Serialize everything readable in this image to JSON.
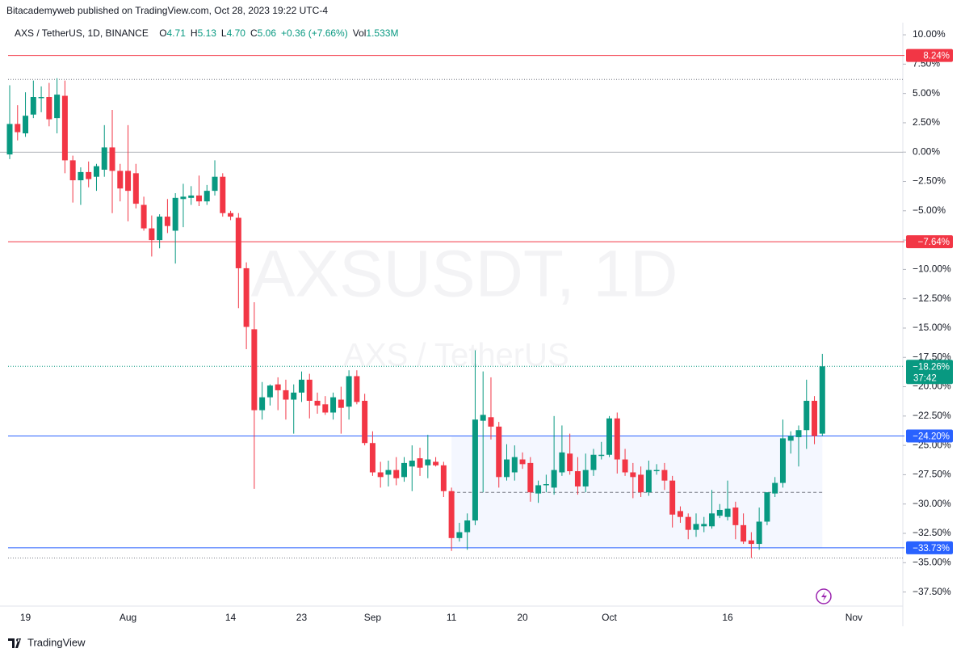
{
  "header": "Bitacademyweb published on TradingView.com, Oct 28, 2023 19:22 UTC-4",
  "footer": "TradingView",
  "chart_data": {
    "type": "candlestick",
    "title": "AXS / TetherUS, 1D, BINANCE",
    "legend_items": [
      {
        "label": "O",
        "value": "4.71"
      },
      {
        "label": "H",
        "value": "5.13"
      },
      {
        "label": "L",
        "value": "4.70"
      },
      {
        "label": "C",
        "value": "5.06"
      },
      {
        "label": "",
        "value": "+0.36 (+7.66%)"
      },
      {
        "label": "Vol",
        "value": "1.533M"
      }
    ],
    "watermark": "AXSUSDT, 1D",
    "watermark_subtitle": "AXS / TetherUS",
    "up_color": "#089981",
    "down_color": "#f23645",
    "categories": [
      null,
      null,
      "19",
      null,
      null,
      null,
      null,
      null,
      null,
      null,
      null,
      null,
      null,
      null,
      null,
      "Aug",
      null,
      null,
      null,
      null,
      null,
      null,
      null,
      null,
      null,
      null,
      null,
      null,
      "14",
      null,
      null,
      null,
      null,
      null,
      null,
      null,
      null,
      "23",
      null,
      null,
      null,
      null,
      null,
      null,
      null,
      null,
      "Sep",
      null,
      null,
      null,
      null,
      null,
      null,
      null,
      null,
      null,
      "11",
      null,
      null,
      null,
      null,
      null,
      null,
      null,
      null,
      "20",
      null,
      null,
      null,
      null,
      null,
      null,
      null,
      null,
      null,
      null,
      "Oct",
      null,
      null,
      null,
      null,
      null,
      null,
      null,
      null,
      null,
      null,
      null,
      null,
      null,
      null,
      "16",
      null,
      null,
      null,
      null,
      null,
      null,
      null,
      null,
      null,
      null,
      null,
      null,
      null,
      null,
      null,
      "Nov"
    ],
    "open": [
      -0.2,
      2.4,
      1.6,
      3.2,
      4.6,
      4.7,
      2.9,
      4.8,
      -0.7,
      -2.4,
      -1.7,
      -2.1,
      -1.5,
      0.4,
      -1.6,
      -1.6,
      -1.8,
      -4.5,
      -6.5,
      -7.5,
      -5.5,
      -6.7,
      -4.0,
      -3.9,
      -3.7,
      -4.2,
      -3.3,
      -2.1,
      -5.2,
      -5.6,
      -9.9,
      -15.1,
      -22.0,
      -20.9,
      -19.8,
      -20.3,
      -21.1,
      -20.5,
      -19.4,
      -21.2,
      -21.5,
      -22.2,
      -21.1,
      -21.7,
      -19.1,
      -21.2,
      -24.8,
      -27.3,
      -27.5,
      -27.1,
      -27.7,
      -26.8,
      -26.1,
      -26.7,
      -26.4,
      -26.7,
      -28.9,
      -32.9,
      -32.4,
      -31.4,
      -22.9,
      -22.6,
      -23.4,
      -27.7,
      -27.3,
      -26.2,
      -26.5,
      -29.1,
      -28.4,
      -28.6,
      -27.3,
      -25.7,
      -27.2,
      -28.5,
      -27.1,
      -25.9,
      -25.8,
      -22.7,
      -26.2,
      -27.3,
      -27.5,
      -29.0,
      -27.2,
      -27.1,
      -28.0,
      -30.6,
      -31.1,
      -32.2,
      -31.9,
      -31.9,
      -31.0,
      -31.1,
      -30.3,
      -31.8,
      -33.1,
      -33.4,
      -31.5,
      -29.1,
      -28.2,
      -24.6,
      -24.3,
      -23.7,
      -21.2,
      -24.0,
      null,
      null,
      null,
      null
    ],
    "high": [
      5.7,
      4.0,
      5.1,
      6.1,
      5.6,
      5.9,
      6.3,
      6.1,
      -0.3,
      -1.3,
      -0.8,
      -1.0,
      2.3,
      3.6,
      -1.0,
      2.3,
      -1.0,
      -3.8,
      -5.4,
      -5.3,
      -4.0,
      -3.5,
      -2.7,
      -2.9,
      -2.0,
      -2.8,
      -0.7,
      -1.8,
      -5.0,
      -5.2,
      -9.4,
      -12.8,
      -19.6,
      -19.8,
      -19.2,
      -19.4,
      -19.8,
      -18.7,
      -18.9,
      -20.5,
      -20.8,
      -20.5,
      -20.0,
      -18.6,
      -18.6,
      -20.6,
      -23.8,
      -26.4,
      -26.3,
      -26.0,
      -26.0,
      -25.0,
      -25.2,
      -24.1,
      -26.0,
      -26.4,
      -28.6,
      -31.6,
      -30.8,
      -16.9,
      -18.7,
      -19.2,
      -23.0,
      -24.9,
      -25.0,
      -25.6,
      -26.0,
      -28.0,
      -27.5,
      -22.5,
      -23.3,
      -24.0,
      -26.0,
      -25.7,
      -25.3,
      -24.7,
      -22.5,
      -22.2,
      -25.3,
      -26.5,
      -26.8,
      -26.3,
      -26.6,
      -26.5,
      -27.6,
      -30.2,
      -30.8,
      -30.8,
      -31.1,
      -28.8,
      -30.0,
      -28.0,
      -29.8,
      -30.8,
      -32.4,
      -30.3,
      -29.0,
      -27.7,
      -22.8,
      -23.8,
      -23.3,
      -19.4,
      -20.8,
      -17.2,
      null,
      null,
      null,
      null
    ],
    "low": [
      -0.6,
      1.0,
      1.3,
      2.9,
      3.4,
      2.2,
      1.6,
      -1.8,
      -4.3,
      -4.5,
      -3.0,
      -3.3,
      -2.1,
      -5.2,
      -4.2,
      -5.9,
      -4.8,
      -6.7,
      -8.9,
      -8.2,
      -6.9,
      -9.5,
      -6.4,
      -4.5,
      -4.6,
      -4.5,
      -3.7,
      -5.5,
      -5.8,
      -13.3,
      -16.8,
      -28.7,
      -22.8,
      -21.6,
      -22.0,
      -22.8,
      -24.0,
      -21.3,
      -22.7,
      -22.3,
      -22.4,
      -22.8,
      -24.0,
      -22.8,
      -21.5,
      -25.0,
      -27.6,
      -28.6,
      -28.5,
      -28.4,
      -28.1,
      -28.9,
      -27.6,
      -27.8,
      -26.8,
      -29.4,
      -34.0,
      -33.2,
      -33.9,
      -31.8,
      -29.0,
      -24.5,
      -28.6,
      -28.0,
      -28.0,
      -27.0,
      -29.8,
      -29.9,
      -29.0,
      -29.2,
      -27.6,
      -27.5,
      -29.2,
      -29.0,
      -27.6,
      -26.2,
      -26.0,
      -27.4,
      -27.6,
      -29.5,
      -29.4,
      -29.3,
      -27.5,
      -28.8,
      -32.0,
      -31.6,
      -33.0,
      -32.8,
      -32.4,
      -32.1,
      -31.2,
      -31.4,
      -33.0,
      -33.4,
      -34.6,
      -33.9,
      -31.8,
      -29.4,
      -28.6,
      -25.7,
      -26.8,
      -25.3,
      -24.9,
      -24.2,
      null,
      null,
      null,
      null
    ],
    "close": [
      2.4,
      1.7,
      3.1,
      4.7,
      4.7,
      2.8,
      4.9,
      -0.7,
      -2.4,
      -1.7,
      -2.3,
      -1.2,
      0.4,
      -1.6,
      -3.1,
      -3.3,
      -4.4,
      -6.5,
      -7.5,
      -5.5,
      -6.3,
      -3.9,
      -3.8,
      -3.7,
      -4.2,
      -3.3,
      -2.1,
      -5.2,
      -5.5,
      -9.9,
      -14.9,
      -22.0,
      -20.9,
      -19.9,
      -20.3,
      -21.1,
      -20.5,
      -19.4,
      -21.2,
      -21.6,
      -22.2,
      -20.9,
      -21.8,
      -19.1,
      -21.3,
      -24.8,
      -27.3,
      -27.7,
      -27.1,
      -27.8,
      -26.5,
      -26.3,
      -26.9,
      -26.2,
      -26.7,
      -28.9,
      -32.9,
      -32.4,
      -31.4,
      -22.8,
      -22.4,
      -23.4,
      -27.7,
      -26.2,
      -26.0,
      -26.6,
      -29.0,
      -28.4,
      -28.3,
      -27.1,
      -25.6,
      -27.2,
      -28.5,
      -27.1,
      -25.8,
      -25.8,
      -22.7,
      -26.2,
      -27.3,
      -27.7,
      -29.0,
      -27.1,
      -27.1,
      -28.0,
      -30.9,
      -31.1,
      -32.2,
      -31.7,
      -31.7,
      -30.8,
      -30.5,
      -30.4,
      -31.8,
      -33.2,
      -33.4,
      -31.5,
      -29.0,
      -28.2,
      -24.4,
      -24.2,
      -23.7,
      -21.2,
      -24.2,
      -18.26,
      null,
      null,
      null,
      null
    ],
    "ylim": [
      -38.7,
      10.9
    ],
    "yticks": [
      {
        "value": 10,
        "label": "10.00%"
      },
      {
        "value": 7.5,
        "label": "7.50%"
      },
      {
        "value": 5,
        "label": "5.00%"
      },
      {
        "value": 2.5,
        "label": "2.50%"
      },
      {
        "value": 0,
        "label": "0.00%"
      },
      {
        "value": -2.5,
        "label": "−2.50%"
      },
      {
        "value": -5,
        "label": "−5.00%"
      },
      {
        "value": -7.5,
        "label": "−7.50%"
      },
      {
        "value": -10,
        "label": "−10.00%"
      },
      {
        "value": -12.5,
        "label": "−12.50%"
      },
      {
        "value": -15,
        "label": "−15.00%"
      },
      {
        "value": -17.5,
        "label": "−17.50%"
      },
      {
        "value": -20,
        "label": "−20.00%"
      },
      {
        "value": -22.5,
        "label": "−22.50%"
      },
      {
        "value": -25,
        "label": "−25.00%"
      },
      {
        "value": -27.5,
        "label": "−27.50%"
      },
      {
        "value": -30,
        "label": "−30.00%"
      },
      {
        "value": -32.5,
        "label": "−32.50%"
      },
      {
        "value": -35,
        "label": "−35.00%"
      },
      {
        "value": -37.5,
        "label": "−37.50%"
      }
    ],
    "baseline": 0,
    "reference_lines": [
      6.2,
      -34.6
    ],
    "range_box": {
      "x": [
        56,
        103
      ],
      "ylim": [
        -33.73,
        -24.2
      ],
      "mid": -29.0,
      "color": "#2962ff"
    },
    "levels": [
      {
        "value": 8.24,
        "label": "8.24%",
        "color": "#f23645"
      },
      {
        "value": -7.64,
        "label": "−7.64%",
        "color": "#f23645"
      },
      {
        "value": -24.2,
        "label": "−24.20%",
        "color": "#2962ff"
      },
      {
        "value": -33.73,
        "label": "−33.73%",
        "color": "#2962ff"
      }
    ],
    "price": {
      "value": -18.26,
      "label": "−18.26%",
      "countdown": "37:42",
      "color": "#089981"
    }
  }
}
